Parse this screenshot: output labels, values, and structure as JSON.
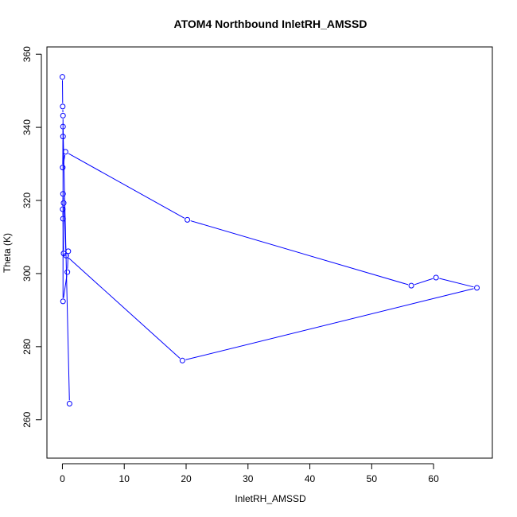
{
  "chart_data": {
    "type": "scatter",
    "mode": "lines+markers",
    "title": "ATOM4 Northbound InletRH_AMSSD",
    "xlabel": "InletRH_AMSSD",
    "ylabel": "Theta (K)",
    "xlim": [
      -2.5,
      69.5
    ],
    "ylim": [
      249.5,
      362
    ],
    "xticks": [
      0,
      10,
      20,
      30,
      40,
      50,
      60
    ],
    "yticks": [
      260,
      280,
      300,
      320,
      340,
      360
    ],
    "grid": false,
    "legend": "none",
    "series": [
      {
        "color": "#0000ff",
        "points": [
          {
            "x": 0.0,
            "y": 353.8
          },
          {
            "x": 0.05,
            "y": 345.7
          },
          {
            "x": 0.1,
            "y": 343.2
          },
          {
            "x": 0.1,
            "y": 337.5
          },
          {
            "x": 0.05,
            "y": 329.0
          },
          {
            "x": 0.5,
            "y": 333.3
          },
          {
            "x": 20.2,
            "y": 314.7
          },
          {
            "x": 56.4,
            "y": 296.7
          },
          {
            "x": 60.4,
            "y": 298.9
          },
          {
            "x": 67.0,
            "y": 296.1
          },
          {
            "x": 19.4,
            "y": 276.2
          },
          {
            "x": 0.6,
            "y": 304.9
          },
          {
            "x": 0.2,
            "y": 319.3
          },
          {
            "x": 0.1,
            "y": 321.8
          },
          {
            "x": 0.05,
            "y": 317.6
          },
          {
            "x": 0.1,
            "y": 315.0
          },
          {
            "x": 0.2,
            "y": 305.5
          },
          {
            "x": 0.95,
            "y": 306.1
          },
          {
            "x": 0.8,
            "y": 300.4
          },
          {
            "x": 0.1,
            "y": 292.4
          },
          {
            "x": 0.1,
            "y": 340.2
          },
          {
            "x": 1.15,
            "y": 264.4
          }
        ]
      }
    ]
  }
}
